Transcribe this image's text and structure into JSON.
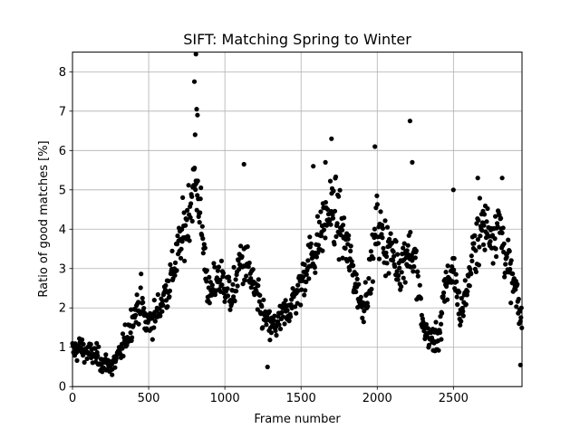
{
  "chart_data": {
    "type": "scatter",
    "title": "SIFT: Matching Spring to Winter",
    "xlabel": "Frame number",
    "ylabel": "Ratio of good matches [%]",
    "xlim": [
      0,
      2950
    ],
    "ylim": [
      0,
      8.5
    ],
    "xticks": [
      0,
      500,
      1000,
      1500,
      2000,
      2500
    ],
    "yticks": [
      0,
      1,
      2,
      3,
      4,
      5,
      6,
      7,
      8
    ],
    "grid": true,
    "marker_color": "#000000",
    "frame_step": 3,
    "trend": [
      [
        0,
        0.9
      ],
      [
        50,
        1.0
      ],
      [
        100,
        0.85
      ],
      [
        150,
        0.8
      ],
      [
        200,
        0.6
      ],
      [
        260,
        0.55
      ],
      [
        300,
        0.75
      ],
      [
        350,
        1.2
      ],
      [
        400,
        1.8
      ],
      [
        450,
        2.2
      ],
      [
        480,
        1.6
      ],
      [
        550,
        1.8
      ],
      [
        600,
        2.3
      ],
      [
        650,
        2.8
      ],
      [
        700,
        3.5
      ],
      [
        750,
        4.2
      ],
      [
        800,
        5.2
      ],
      [
        830,
        4.8
      ],
      [
        860,
        3.5
      ],
      [
        900,
        2.2
      ],
      [
        950,
        2.8
      ],
      [
        1000,
        2.6
      ],
      [
        1050,
        2.2
      ],
      [
        1100,
        3.2
      ],
      [
        1150,
        3.0
      ],
      [
        1200,
        2.4
      ],
      [
        1250,
        1.8
      ],
      [
        1300,
        1.5
      ],
      [
        1350,
        1.6
      ],
      [
        1400,
        1.9
      ],
      [
        1450,
        2.2
      ],
      [
        1500,
        2.6
      ],
      [
        1550,
        3.2
      ],
      [
        1600,
        3.5
      ],
      [
        1650,
        4.2
      ],
      [
        1700,
        4.5
      ],
      [
        1750,
        4.2
      ],
      [
        1800,
        3.5
      ],
      [
        1850,
        2.8
      ],
      [
        1900,
        2.0
      ],
      [
        1950,
        2.7
      ],
      [
        2000,
        4.2
      ],
      [
        2050,
        3.6
      ],
      [
        2100,
        3.4
      ],
      [
        2150,
        3.0
      ],
      [
        2200,
        3.5
      ],
      [
        2250,
        3.2
      ],
      [
        2300,
        1.5
      ],
      [
        2350,
        1.2
      ],
      [
        2400,
        1.2
      ],
      [
        2450,
        2.6
      ],
      [
        2500,
        3.0
      ],
      [
        2550,
        1.8
      ],
      [
        2600,
        2.7
      ],
      [
        2650,
        3.8
      ],
      [
        2700,
        4.1
      ],
      [
        2750,
        3.9
      ],
      [
        2800,
        4.2
      ],
      [
        2850,
        3.2
      ],
      [
        2900,
        2.5
      ],
      [
        2950,
        1.6
      ]
    ],
    "peaks": [
      [
        810,
        8.45
      ],
      [
        800,
        7.75
      ],
      [
        815,
        7.05
      ],
      [
        820,
        6.9
      ],
      [
        805,
        6.4
      ],
      [
        1125,
        5.65
      ],
      [
        1700,
        6.3
      ],
      [
        1985,
        6.1
      ],
      [
        2215,
        6.75
      ],
      [
        2230,
        5.7
      ],
      [
        2500,
        5.0
      ],
      [
        2660,
        5.3
      ],
      [
        2820,
        5.3
      ],
      [
        2940,
        0.55
      ],
      [
        1580,
        5.6
      ],
      [
        1660,
        5.7
      ],
      [
        2420,
        1.2
      ],
      [
        260,
        0.3
      ],
      [
        1280,
        0.5
      ]
    ]
  }
}
